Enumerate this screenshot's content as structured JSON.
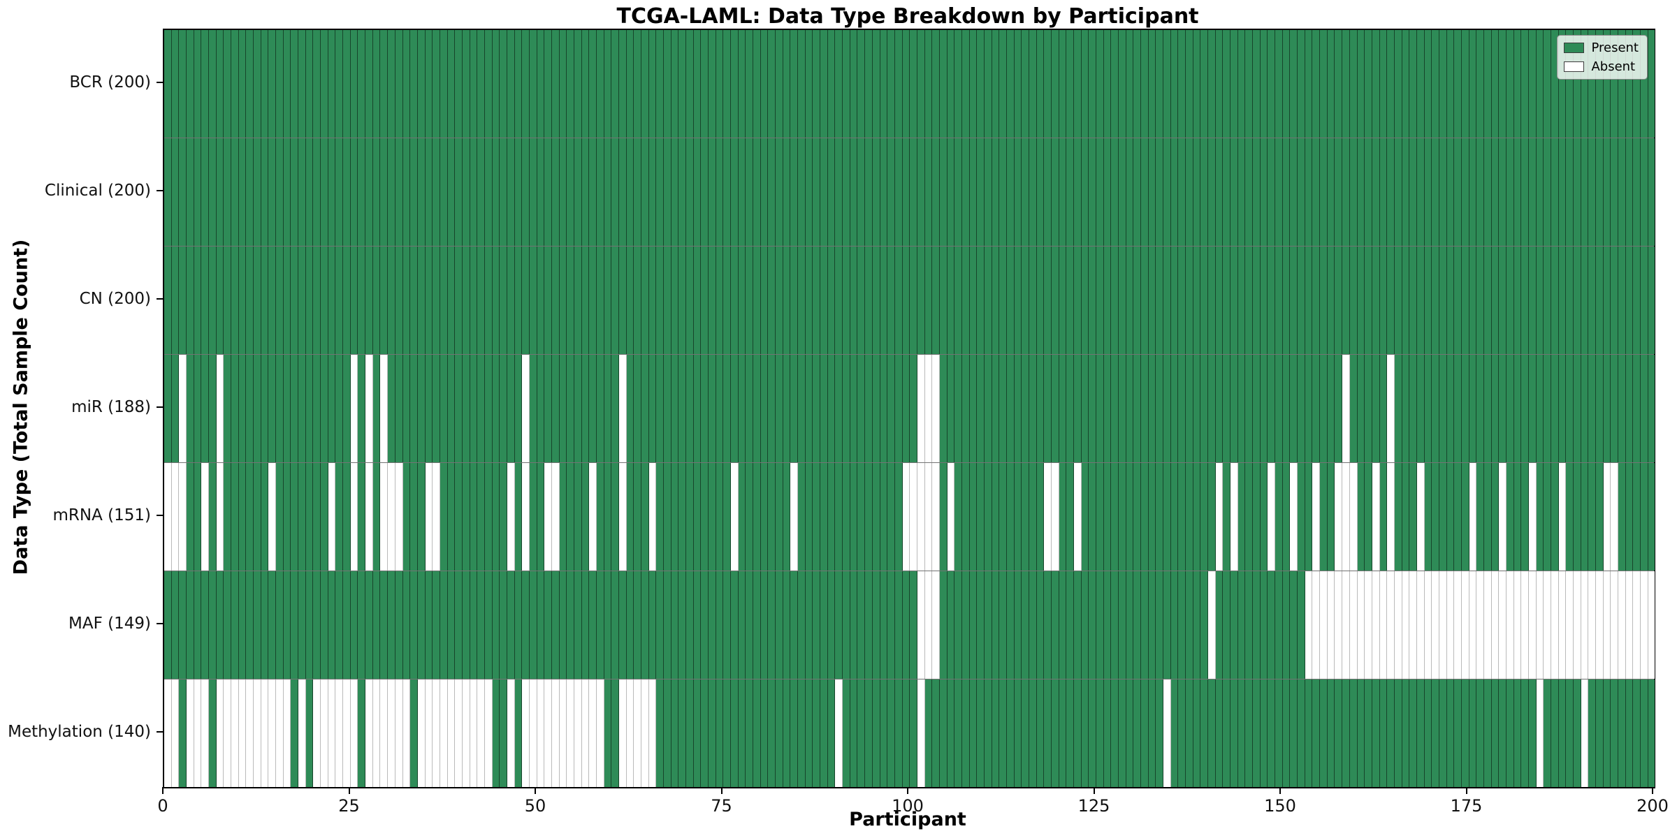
{
  "title": "TCGA-LAML: Data Type Breakdown by Participant",
  "xlabel": "Participant",
  "ylabel": "Data Type (Total Sample Count)",
  "legend": {
    "present_label": "Present",
    "absent_label": "Absent"
  },
  "colors": {
    "present": "#2e8b57",
    "absent": "#ffffff",
    "cell_edge_on_green": "rgba(0,0,0,0.50)",
    "cell_edge_on_white": "rgba(0,0,0,0.27)",
    "axis": "#000000"
  },
  "x_ticks": [
    0,
    25,
    50,
    75,
    100,
    125,
    150,
    175,
    200
  ],
  "chart_data": {
    "type": "heatmap",
    "title": "TCGA-LAML: Data Type Breakdown by Participant",
    "xlabel": "Participant",
    "ylabel": "Data Type (Total Sample Count)",
    "x_range": [
      0,
      200
    ],
    "n_participants": 200,
    "legend_entries": [
      "Present",
      "Absent"
    ],
    "legend_position": "upper right",
    "rows": [
      {
        "label": "BCR (200)",
        "name": "BCR",
        "present_count": 200,
        "absent_participants": []
      },
      {
        "label": "Clinical (200)",
        "name": "Clinical",
        "present_count": 200,
        "absent_participants": []
      },
      {
        "label": "CN (200)",
        "name": "CN",
        "present_count": 200,
        "absent_participants": []
      },
      {
        "label": "miR (188)",
        "name": "miR",
        "present_count": 188,
        "absent_participants": [
          2,
          7,
          25,
          27,
          29,
          48,
          61,
          101,
          102,
          103,
          158,
          164
        ]
      },
      {
        "label": "mRNA (151)",
        "name": "mRNA",
        "present_count": 151,
        "absent_participants": [
          0,
          1,
          2,
          5,
          7,
          14,
          22,
          25,
          27,
          29,
          30,
          31,
          35,
          36,
          46,
          48,
          51,
          52,
          57,
          61,
          65,
          76,
          84,
          99,
          100,
          101,
          102,
          103,
          105,
          118,
          119,
          122,
          141,
          143,
          148,
          151,
          154,
          157,
          158,
          159,
          162,
          164,
          168,
          175,
          179,
          183,
          187,
          193,
          194
        ]
      },
      {
        "label": "MAF (149)",
        "name": "MAF",
        "present_count": 149,
        "absent_participants": [
          101,
          102,
          103,
          140,
          153,
          154,
          155,
          156,
          157,
          158,
          159,
          160,
          161,
          162,
          163,
          164,
          165,
          166,
          167,
          168,
          169,
          170,
          171,
          172,
          173,
          174,
          175,
          176,
          177,
          178,
          179,
          180,
          181,
          182,
          183,
          184,
          185,
          186,
          187,
          188,
          189,
          190,
          191,
          192,
          193,
          194,
          195,
          196,
          197,
          198,
          199
        ]
      },
      {
        "label": "Methylation (140)",
        "name": "Methylation",
        "present_count": 140,
        "absent_participants": [
          0,
          1,
          3,
          4,
          5,
          7,
          8,
          9,
          10,
          11,
          12,
          13,
          14,
          15,
          16,
          18,
          20,
          21,
          22,
          23,
          24,
          25,
          27,
          28,
          29,
          30,
          31,
          32,
          34,
          35,
          36,
          37,
          38,
          39,
          40,
          41,
          42,
          43,
          46,
          48,
          49,
          50,
          51,
          52,
          53,
          54,
          55,
          56,
          57,
          58,
          61,
          62,
          63,
          64,
          65,
          90,
          101,
          134,
          184,
          190
        ]
      }
    ]
  }
}
